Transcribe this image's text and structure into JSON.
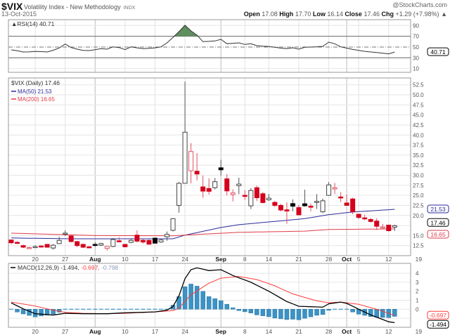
{
  "header": {
    "symbol": "$VIX",
    "name": "Volatility Index - New Methodology",
    "exchange": "INDX",
    "date": "13-Oct-2015",
    "copyright": "@StockCharts.com",
    "open_label": "Open",
    "open": "17.08",
    "high_label": "High",
    "high": "17.70",
    "low_label": "Low",
    "low": "16.14",
    "close_label": "Close",
    "close": "17.46",
    "chg_label": "Chg",
    "chg": "+1.29 (+7.98%)",
    "chg_arrow": "▲"
  },
  "colors": {
    "up": "#000000",
    "down": "#d4001c",
    "ma50": "#2b2b9a",
    "ma200": "#e03a48",
    "macd": "#000000",
    "signal": "#ff3b3b",
    "histogram": "#3a93c6",
    "rsi_fill": "#5f8f5f"
  },
  "chart_data": [
    {
      "type": "line",
      "panel": "rsi",
      "legend": "RSI(14) 40.71",
      "last_value_label": "40.71",
      "ylim": [
        0,
        100
      ],
      "y_ticks": [
        "90",
        "70",
        "50",
        "30",
        "10"
      ],
      "reference_lines": [
        70,
        50,
        30
      ],
      "values": [
        44.7,
        43,
        40.8,
        41,
        41.7,
        41.5,
        40.8,
        44,
        48.2,
        55.6,
        49.1,
        46,
        43.8,
        43.4,
        45,
        46.9,
        46,
        50.4,
        49.1,
        45.2,
        50.4,
        48.5,
        46.9,
        47.5,
        48.5,
        50.4,
        57.8,
        68,
        78.6,
        90.4,
        80,
        72.1,
        60,
        60.5,
        61.3,
        64.3,
        56.1,
        57,
        57.8,
        54.8,
        56.1,
        52.6,
        51.7,
        51,
        49.6,
        48,
        46.9,
        48.6,
        46,
        49.6,
        50,
        50.5,
        51.3,
        59.1,
        56.1,
        50.4,
        48,
        45.5,
        43.8,
        42,
        40.8,
        39.8,
        38.6,
        37.3,
        40.71
      ]
    },
    {
      "type": "candlestick",
      "panel": "price",
      "legend": "$VIX (Daily) 17.46",
      "last_value_label": "17.46",
      "ylim": [
        10.6,
        54.5
      ],
      "y_ticks": [
        "52.5",
        "50.0",
        "47.5",
        "45.0",
        "42.5",
        "40.0",
        "37.5",
        "35.0",
        "32.5",
        "30.0",
        "27.5",
        "25.0",
        "22.5",
        "20.0",
        "15.0",
        "12.5"
      ],
      "x_ticks": [
        {
          "label": "20",
          "date": "2015-07-20",
          "bold": false
        },
        {
          "label": "27",
          "date": "2015-07-27",
          "bold": false
        },
        {
          "label": "Aug",
          "date": "2015-08-03",
          "bold": true
        },
        {
          "label": "10",
          "date": "2015-08-10",
          "bold": false
        },
        {
          "label": "17",
          "date": "2015-08-17",
          "bold": false
        },
        {
          "label": "24",
          "date": "2015-08-24",
          "bold": false
        },
        {
          "label": "Sep",
          "date": "2015-09-01",
          "bold": true
        },
        {
          "label": "8",
          "date": "2015-09-08",
          "bold": false
        },
        {
          "label": "14",
          "date": "2015-09-14",
          "bold": false
        },
        {
          "label": "21",
          "date": "2015-09-21",
          "bold": false
        },
        {
          "label": "28",
          "date": "2015-09-28",
          "bold": false
        },
        {
          "label": "Oct",
          "date": "2015-10-01",
          "bold": true
        },
        {
          "label": "5",
          "date": "2015-10-05",
          "bold": false
        },
        {
          "label": "12",
          "date": "2015-10-12",
          "bold": false
        },
        {
          "label": "19",
          "date": "2015-10-19",
          "bold": false
        }
      ],
      "columns": [
        "date",
        "open",
        "high",
        "low",
        "close"
      ],
      "ohlc": [
        [
          "2015-07-14",
          13.9,
          14.0,
          12.9,
          13.2
        ],
        [
          "2015-07-15",
          13.3,
          13.6,
          12.9,
          13.15
        ],
        [
          "2015-07-16",
          12.5,
          12.7,
          11.9,
          12.1
        ],
        [
          "2015-07-17",
          11.8,
          12.2,
          11.7,
          12.0
        ],
        [
          "2015-07-20",
          12.2,
          12.6,
          11.9,
          12.25
        ],
        [
          "2015-07-21",
          12.4,
          12.6,
          12.0,
          12.2
        ],
        [
          "2015-07-22",
          12.8,
          12.9,
          12.0,
          12.1
        ],
        [
          "2015-07-23",
          11.9,
          12.9,
          11.5,
          12.6
        ],
        [
          "2015-07-24",
          13.0,
          14.7,
          12.9,
          13.8
        ],
        [
          "2015-07-27",
          15.5,
          16.3,
          14.9,
          15.6
        ],
        [
          "2015-07-28",
          14.9,
          15.1,
          13.3,
          13.5
        ],
        [
          "2015-07-29",
          13.5,
          13.7,
          12.1,
          12.5
        ],
        [
          "2015-07-30",
          12.8,
          13.0,
          11.9,
          12.1
        ],
        [
          "2015-07-31",
          12.2,
          12.4,
          11.9,
          12.05
        ],
        [
          "2015-08-03",
          12.8,
          13.3,
          12.2,
          12.55
        ],
        [
          "2015-08-04",
          12.6,
          13.2,
          12.4,
          13.0
        ],
        [
          "2015-08-05",
          11.8,
          12.4,
          11.3,
          12.3
        ],
        [
          "2015-08-06",
          12.3,
          14.4,
          12.1,
          14.0
        ],
        [
          "2015-08-07",
          13.7,
          14.6,
          13.3,
          13.6
        ],
        [
          "2015-08-10",
          12.8,
          12.9,
          12.0,
          12.2
        ],
        [
          "2015-08-11",
          13.3,
          14.3,
          13.1,
          13.8
        ],
        [
          "2015-08-12",
          15.1,
          16.3,
          13.3,
          13.6
        ],
        [
          "2015-08-13",
          13.8,
          14.1,
          13.0,
          13.4
        ],
        [
          "2015-08-14",
          13.8,
          14.0,
          12.7,
          12.85
        ],
        [
          "2015-08-17",
          14.35,
          14.5,
          13.0,
          13.1
        ],
        [
          "2015-08-18",
          13.4,
          14.2,
          13.2,
          13.9
        ],
        [
          "2015-08-19",
          14.7,
          16.0,
          13.7,
          15.3
        ],
        [
          "2015-08-20",
          16.3,
          19.3,
          16.0,
          19.2
        ],
        [
          "2015-08-21",
          22.5,
          28.3,
          20.7,
          28.0
        ],
        [
          "2015-08-24",
          28.0,
          53.3,
          28.0,
          40.7
        ],
        [
          "2015-08-25",
          31.1,
          38.0,
          28.0,
          35.9
        ],
        [
          "2015-08-26",
          31.0,
          35.5,
          28.7,
          30.3
        ],
        [
          "2015-08-27",
          27.1,
          29.9,
          24.4,
          26.05
        ],
        [
          "2015-08-28",
          26.7,
          29.2,
          25.2,
          26.0
        ],
        [
          "2015-08-31",
          26.9,
          29.3,
          26.5,
          28.4
        ],
        [
          "2015-09-01",
          31.85,
          33.8,
          29.9,
          31.35
        ],
        [
          "2015-09-02",
          29.1,
          30.3,
          25.0,
          26.1
        ],
        [
          "2015-09-03",
          25.2,
          26.5,
          23.5,
          25.6
        ],
        [
          "2015-09-04",
          27.4,
          29.4,
          25.3,
          27.8
        ],
        [
          "2015-09-08",
          25.0,
          26.3,
          23.9,
          24.9
        ],
        [
          "2015-09-09",
          22.4,
          26.8,
          21.6,
          26.2
        ],
        [
          "2015-09-10",
          26.9,
          27.4,
          23.6,
          24.4
        ],
        [
          "2015-09-11",
          25.4,
          25.8,
          23.0,
          23.2
        ],
        [
          "2015-09-14",
          23.9,
          25.3,
          23.6,
          24.3
        ],
        [
          "2015-09-15",
          23.25,
          23.6,
          22.1,
          22.5
        ],
        [
          "2015-09-16",
          22.5,
          22.9,
          21.0,
          21.35
        ],
        [
          "2015-09-17",
          21.4,
          23.25,
          17.9,
          21.1
        ],
        [
          "2015-09-18",
          22.95,
          24.0,
          21.0,
          22.3
        ],
        [
          "2015-09-21",
          21.95,
          22.6,
          20.1,
          20.15
        ],
        [
          "2015-09-22",
          22.9,
          26.4,
          22.2,
          22.4
        ],
        [
          "2015-09-23",
          22.3,
          22.9,
          21.0,
          22.2
        ],
        [
          "2015-09-24",
          23.4,
          25.3,
          21.6,
          23.5
        ],
        [
          "2015-09-25",
          20.9,
          24.2,
          20.6,
          23.65
        ],
        [
          "2015-09-28",
          25.0,
          28.3,
          24.9,
          27.6
        ],
        [
          "2015-09-29",
          26.6,
          28.1,
          25.3,
          26.9
        ],
        [
          "2015-09-30",
          24.6,
          25.8,
          23.3,
          24.5
        ],
        [
          "2015-10-01",
          23.1,
          25.2,
          22.4,
          22.5
        ],
        [
          "2015-10-02",
          24.1,
          24.4,
          20.3,
          20.9
        ],
        [
          "2015-10-05",
          20.3,
          20.4,
          19.1,
          19.5
        ],
        [
          "2015-10-06",
          19.4,
          20.2,
          18.8,
          19.35
        ],
        [
          "2015-10-07",
          19.0,
          19.4,
          18.2,
          18.5
        ],
        [
          "2015-10-08",
          18.6,
          19.3,
          16.4,
          17.3
        ],
        [
          "2015-10-09",
          17.1,
          17.9,
          16.7,
          17.15
        ],
        [
          "2015-10-12",
          17.6,
          17.7,
          16.0,
          16.2
        ],
        [
          "2015-10-13",
          17.08,
          17.7,
          16.14,
          17.46
        ]
      ],
      "overlays": [
        {
          "name": "MA(50) 21.53",
          "last_value_label": "21.53",
          "knots": [
            [
              0,
              14.4
            ],
            [
              10,
              14.2
            ],
            [
              27,
              14.2
            ],
            [
              29,
              15.1
            ],
            [
              35,
              17.0
            ],
            [
              38,
              17.7
            ],
            [
              49,
              19.2
            ],
            [
              53,
              20.2
            ],
            [
              57,
              20.85
            ],
            [
              64,
              21.53
            ]
          ]
        },
        {
          "name": "MA(200) 16.65",
          "last_value_label": "16.65",
          "knots": [
            [
              0,
              15.6
            ],
            [
              14,
              15.0
            ],
            [
              27,
              14.95
            ],
            [
              29,
              15.1
            ],
            [
              34,
              15.5
            ],
            [
              38,
              15.8
            ],
            [
              49,
              16.1
            ],
            [
              53,
              16.5
            ],
            [
              64,
              16.65
            ]
          ]
        }
      ]
    },
    {
      "type": "line+bar",
      "panel": "macd",
      "legend": {
        "name": "MACD(12,26,9)",
        "macd": "-1.494",
        "signal": "-0.697",
        "histogram": "-0.798"
      },
      "y_ticks": [
        "4",
        "3",
        "2",
        "1",
        "0"
      ],
      "macd_label": "-1.494",
      "signal_label": "-0.697",
      "macd_knots": [
        [
          0,
          0.7
        ],
        [
          2,
          0.05
        ],
        [
          4,
          -0.5
        ],
        [
          7,
          -0.65
        ],
        [
          9,
          -0.45
        ],
        [
          12,
          -0.5
        ],
        [
          16,
          -0.5
        ],
        [
          19,
          -0.4
        ],
        [
          24,
          -0.3
        ],
        [
          26,
          -0.1
        ],
        [
          27,
          0.3
        ],
        [
          28,
          1.5
        ],
        [
          29,
          3.4
        ],
        [
          30,
          4.4
        ],
        [
          31,
          4.6
        ],
        [
          33,
          4.3
        ],
        [
          35,
          4.4
        ],
        [
          37,
          3.75
        ],
        [
          40,
          3.0
        ],
        [
          43,
          2.0
        ],
        [
          46,
          0.85
        ],
        [
          48,
          0.33
        ],
        [
          52,
          0.23
        ],
        [
          53,
          0.6
        ],
        [
          55,
          0.8
        ],
        [
          56,
          0.65
        ],
        [
          58,
          0.0
        ],
        [
          60,
          -0.63
        ],
        [
          63,
          -1.4
        ],
        [
          64,
          -1.494
        ]
      ],
      "signal_knots": [
        [
          0,
          0.8
        ],
        [
          4,
          0.35
        ],
        [
          7,
          -0.1
        ],
        [
          9,
          -0.35
        ],
        [
          12,
          -0.45
        ],
        [
          16,
          -0.5
        ],
        [
          19,
          -0.45
        ],
        [
          24,
          -0.3
        ],
        [
          27,
          -0.15
        ],
        [
          28,
          0.1
        ],
        [
          29,
          0.9
        ],
        [
          30,
          1.6
        ],
        [
          33,
          2.9
        ],
        [
          35,
          3.45
        ],
        [
          38,
          3.65
        ],
        [
          41,
          3.3
        ],
        [
          44,
          2.6
        ],
        [
          47,
          1.7
        ],
        [
          51,
          0.93
        ],
        [
          53,
          0.72
        ],
        [
          55,
          0.8
        ],
        [
          58,
          0.55
        ],
        [
          61,
          0.0
        ],
        [
          64,
          -0.697
        ]
      ]
    }
  ]
}
